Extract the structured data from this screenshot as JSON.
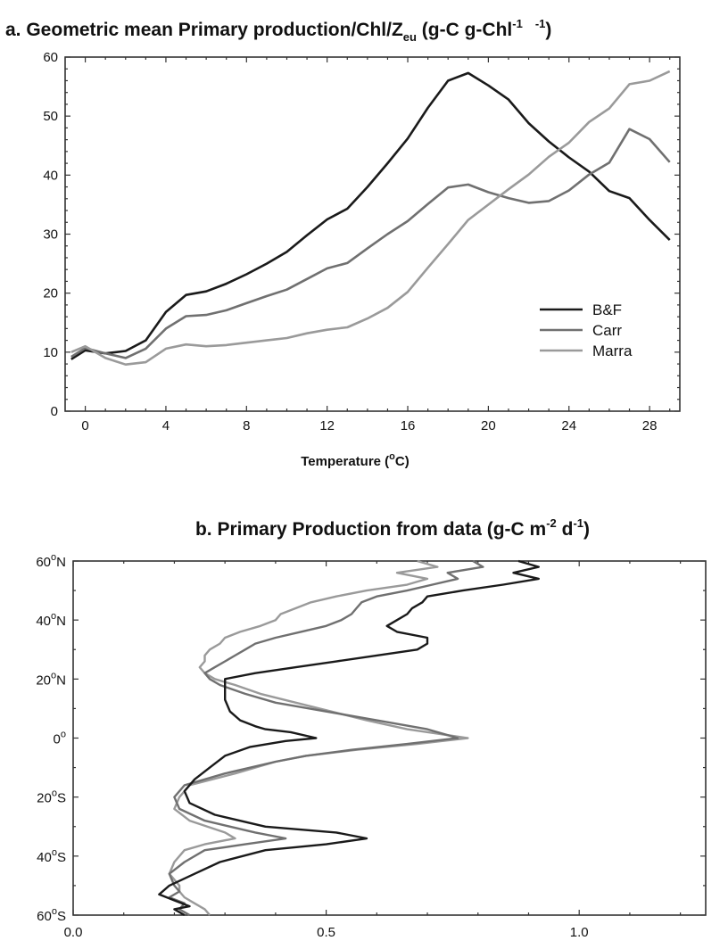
{
  "chart_data": [
    {
      "type": "line",
      "title": {
        "prefix": "a. Geometric mean Primary production/Chl/Z",
        "sub": "eu",
        "middle": " (g-C g-Chl",
        "sup1": "-1",
        "sup2": "-1",
        "end": ")"
      },
      "xlabel": {
        "base": "Temperature (",
        "sup": "o",
        "end": "C)"
      },
      "ylabel": "",
      "xlim": [
        -1,
        29.5
      ],
      "ylim": [
        0,
        60
      ],
      "xticks": [
        0,
        4,
        8,
        12,
        16,
        20,
        24,
        28
      ],
      "yticks": [
        0,
        10,
        20,
        30,
        40,
        50,
        60
      ],
      "legend_position": "center-right",
      "grid": false,
      "series": [
        {
          "name": "B&F",
          "color": "#1a1a1a",
          "x": [
            -0.7,
            0,
            1,
            2,
            3,
            4,
            5,
            6,
            7,
            8,
            9,
            10,
            11,
            12,
            13,
            14,
            15,
            16,
            17,
            18,
            19,
            20,
            21,
            22,
            23,
            24,
            25,
            26,
            27,
            28,
            29
          ],
          "y": [
            8.8,
            10.3,
            9.8,
            10.2,
            12.0,
            16.8,
            19.7,
            20.3,
            21.6,
            23.2,
            25.0,
            27.0,
            29.8,
            32.5,
            34.3,
            38.0,
            42.0,
            46.2,
            51.4,
            56.0,
            57.3,
            55.2,
            52.8,
            48.8,
            45.7,
            43.0,
            40.6,
            37.3,
            36.1,
            32.4,
            29.0
          ]
        },
        {
          "name": "Carr",
          "color": "#707070",
          "x": [
            -0.7,
            0,
            1,
            2,
            3,
            4,
            5,
            6,
            7,
            8,
            9,
            10,
            11,
            12,
            13,
            14,
            15,
            16,
            17,
            18,
            19,
            20,
            21,
            22,
            23,
            24,
            25,
            26,
            27,
            28,
            29
          ],
          "y": [
            9.2,
            10.7,
            9.8,
            9.0,
            10.6,
            14.0,
            16.1,
            16.3,
            17.1,
            18.3,
            19.5,
            20.6,
            22.4,
            24.2,
            25.1,
            27.6,
            30.0,
            32.2,
            35.1,
            37.9,
            38.4,
            37.1,
            36.1,
            35.3,
            35.6,
            37.4,
            40.1,
            42.1,
            47.8,
            46.1,
            42.2
          ]
        },
        {
          "name": "Marra",
          "color": "#9a9a9a",
          "x": [
            -0.7,
            0,
            1,
            2,
            3,
            4,
            5,
            6,
            7,
            8,
            9,
            10,
            11,
            12,
            13,
            14,
            15,
            16,
            17,
            18,
            19,
            20,
            21,
            22,
            23,
            24,
            25,
            26,
            27,
            28,
            29
          ],
          "y": [
            10.0,
            11.0,
            9.0,
            7.9,
            8.3,
            10.6,
            11.3,
            11.0,
            11.2,
            11.6,
            12.0,
            12.4,
            13.2,
            13.8,
            14.2,
            15.7,
            17.5,
            20.2,
            24.3,
            28.3,
            32.4,
            35.0,
            37.6,
            40.1,
            43.1,
            45.5,
            49.0,
            51.3,
            55.4,
            56.0,
            57.6
          ]
        }
      ]
    },
    {
      "type": "line",
      "title": {
        "prefix": "b. Primary Production from data (g-C m",
        "sup1": "-2",
        "middle": " d",
        "sup2": "-1",
        "end": ")"
      },
      "xlabel": "",
      "ylabel": "",
      "xlim": [
        0,
        1.25
      ],
      "ylim": [
        -60,
        60
      ],
      "xticks": [
        "0.0",
        "0.5",
        "1.0"
      ],
      "yticks": [
        {
          "value": 60,
          "label": "60",
          "sup": "o",
          "suffix": "N"
        },
        {
          "value": 40,
          "label": "40",
          "sup": "o",
          "suffix": "N"
        },
        {
          "value": 20,
          "label": "20",
          "sup": "o",
          "suffix": "N"
        },
        {
          "value": 0,
          "label": "0",
          "sup": "o",
          "suffix": ""
        },
        {
          "value": -20,
          "label": "20",
          "sup": "o",
          "suffix": "S"
        },
        {
          "value": -40,
          "label": "40",
          "sup": "o",
          "suffix": "S"
        },
        {
          "value": -60,
          "label": "60",
          "sup": "o",
          "suffix": "S"
        }
      ],
      "grid": false,
      "series": [
        {
          "name": "B&F",
          "color": "#1a1a1a",
          "x": [
            0.88,
            0.92,
            0.87,
            0.92,
            0.85,
            0.77,
            0.7,
            0.69,
            0.67,
            0.66,
            0.64,
            0.62,
            0.64,
            0.7,
            0.7,
            0.68,
            0.6,
            0.52,
            0.44,
            0.36,
            0.3,
            0.3,
            0.3,
            0.31,
            0.33,
            0.36,
            0.38,
            0.43,
            0.48,
            0.42,
            0.35,
            0.3,
            0.27,
            0.24,
            0.22,
            0.23,
            0.28,
            0.38,
            0.52,
            0.58,
            0.5,
            0.38,
            0.29,
            0.24,
            0.19,
            0.17,
            0.2,
            0.23,
            0.2,
            0.22
          ],
          "y": [
            60,
            58,
            56,
            54,
            52,
            50,
            48,
            46,
            44,
            42,
            40,
            38,
            36,
            34,
            32,
            30,
            28,
            26,
            24,
            22,
            20,
            17,
            13,
            9,
            6,
            4,
            3,
            2,
            0,
            -1,
            -3,
            -6,
            -10,
            -14,
            -18,
            -22,
            -26,
            -30,
            -32,
            -34,
            -36,
            -38,
            -42,
            -46,
            -50,
            -53,
            -55,
            -57,
            -58,
            -60
          ]
        },
        {
          "name": "Carr",
          "color": "#707070",
          "x": [
            0.79,
            0.81,
            0.74,
            0.76,
            0.71,
            0.66,
            0.6,
            0.57,
            0.56,
            0.55,
            0.53,
            0.5,
            0.45,
            0.4,
            0.36,
            0.34,
            0.32,
            0.3,
            0.28,
            0.26,
            0.27,
            0.29,
            0.34,
            0.4,
            0.5,
            0.6,
            0.7,
            0.74,
            0.76,
            0.66,
            0.55,
            0.46,
            0.4,
            0.3,
            0.22,
            0.2,
            0.21,
            0.26,
            0.36,
            0.42,
            0.34,
            0.26,
            0.22,
            0.19,
            0.2,
            0.21,
            0.19,
            0.22,
            0.21,
            0.23
          ],
          "y": [
            60,
            58,
            56,
            54,
            52,
            50,
            48,
            46,
            44,
            42,
            40,
            38,
            36,
            34,
            32,
            30,
            28,
            26,
            24,
            22,
            20,
            18,
            15,
            12,
            9,
            6,
            3,
            1,
            0,
            -2,
            -4,
            -6,
            -8,
            -12,
            -16,
            -20,
            -24,
            -28,
            -32,
            -34,
            -36,
            -38,
            -42,
            -46,
            -50,
            -52,
            -54,
            -56,
            -58,
            -60
          ]
        },
        {
          "name": "Marra",
          "color": "#9a9a9a",
          "x": [
            0.68,
            0.72,
            0.64,
            0.7,
            0.66,
            0.58,
            0.52,
            0.47,
            0.44,
            0.41,
            0.4,
            0.37,
            0.33,
            0.3,
            0.29,
            0.27,
            0.26,
            0.26,
            0.25,
            0.26,
            0.28,
            0.32,
            0.37,
            0.44,
            0.51,
            0.58,
            0.66,
            0.74,
            0.78,
            0.68,
            0.56,
            0.46,
            0.4,
            0.32,
            0.23,
            0.21,
            0.2,
            0.23,
            0.3,
            0.32,
            0.26,
            0.22,
            0.2,
            0.19,
            0.21,
            0.21,
            0.22,
            0.24,
            0.26,
            0.27
          ],
          "y": [
            60,
            58,
            56,
            54,
            52,
            50,
            48,
            46,
            44,
            42,
            40,
            38,
            36,
            34,
            32,
            30,
            28,
            26,
            24,
            22,
            20,
            18,
            15,
            12,
            9,
            6,
            3,
            1,
            0,
            -2,
            -4,
            -6,
            -8,
            -12,
            -16,
            -20,
            -24,
            -28,
            -32,
            -34,
            -36,
            -38,
            -42,
            -46,
            -50,
            -52,
            -54,
            -56,
            -58,
            -60
          ]
        }
      ]
    }
  ]
}
